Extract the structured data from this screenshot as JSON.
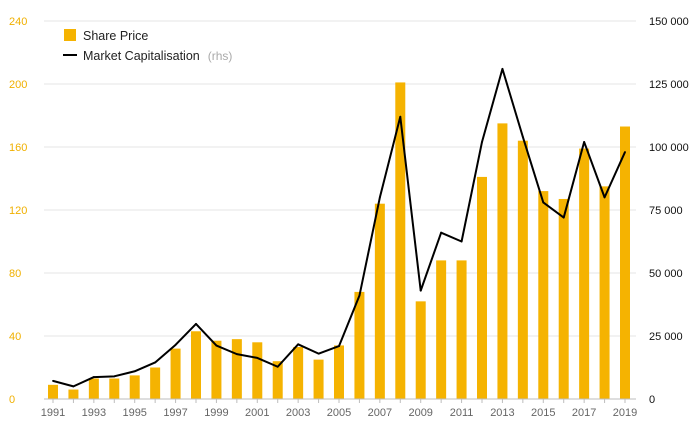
{
  "colors": {
    "bar": "#f5b301",
    "line": "#000000",
    "left_axis_text": "#f0b000",
    "grid": "#e6e6e6"
  },
  "legend": {
    "share_price_label": "Share Price",
    "market_cap_label": "Market Capitalisation",
    "market_cap_note": "(rhs)"
  },
  "chart_data": {
    "type": "bar+line",
    "legend_position": "top-left",
    "grid": {
      "horizontal": true,
      "vertical": false
    },
    "x": [
      1991,
      1992,
      1993,
      1994,
      1995,
      1996,
      1997,
      1998,
      1999,
      2000,
      2001,
      2002,
      2003,
      2004,
      2005,
      2006,
      2007,
      2008,
      2009,
      2010,
      2011,
      2012,
      2013,
      2014,
      2015,
      2016,
      2017,
      2018,
      2019
    ],
    "x_tick_labels": [
      "1991",
      "1993",
      "1995",
      "1997",
      "1999",
      "2001",
      "2003",
      "2005",
      "2007",
      "2009",
      "2011",
      "2013",
      "2015",
      "2017",
      "2019"
    ],
    "series": [
      {
        "name": "Share Price",
        "type": "bar",
        "axis": "left",
        "values": [
          9,
          6,
          13,
          13,
          15,
          20,
          32,
          43,
          37,
          38,
          36,
          24,
          33,
          25,
          34,
          68,
          124,
          201,
          62,
          88,
          88,
          141,
          175,
          164,
          132,
          127,
          159,
          135,
          173
        ]
      },
      {
        "name": "Market Capitalisation",
        "type": "line",
        "axis": "right",
        "values": [
          7200,
          5000,
          8700,
          9000,
          11000,
          14500,
          21500,
          29800,
          21200,
          17800,
          16300,
          12800,
          21700,
          18000,
          21000,
          41000,
          80000,
          112000,
          43000,
          66000,
          62500,
          102000,
          131000,
          104000,
          78000,
          72000,
          102000,
          80000,
          98000
        ]
      }
    ],
    "y_left": {
      "range": [
        0,
        240
      ],
      "ticks": [
        0,
        40,
        80,
        120,
        160,
        200,
        240
      ],
      "tick_labels": [
        "0",
        "40",
        "80",
        "120",
        "160",
        "200",
        "240"
      ]
    },
    "y_right": {
      "range": [
        0,
        150000
      ],
      "ticks": [
        0,
        25000,
        50000,
        75000,
        100000,
        125000,
        150000
      ],
      "tick_labels": [
        "0",
        "25 000",
        "50 000",
        "75 000",
        "100 000",
        "125 000",
        "150 000"
      ]
    }
  }
}
